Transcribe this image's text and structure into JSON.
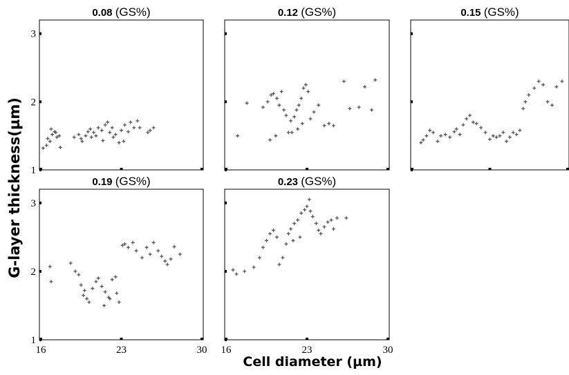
{
  "chart_data": {
    "type": "scatter",
    "ylabel": "G-layer thickness(µm)",
    "xlabel": "Cell diameter (µm)",
    "xticks": [
      "16",
      "23",
      "30"
    ],
    "yticks": [
      "1",
      "2",
      "3"
    ],
    "xlim": [
      16,
      30
    ],
    "ylim": [
      1,
      3.2
    ],
    "marker_color": "#555555",
    "panels": [
      {
        "title_value": "0.08",
        "title_unit": "(GS%)",
        "x": [
          16.2,
          16.5,
          16.8,
          16.6,
          17.0,
          17.2,
          16.9,
          17.4,
          17.6,
          17.3,
          17.7,
          18.9,
          19.3,
          19.5,
          19.9,
          20.1,
          19.6,
          20.3,
          20.6,
          20.8,
          21.0,
          20.4,
          21.3,
          21.6,
          21.8,
          22.0,
          22.3,
          21.4,
          22.5,
          22.8,
          22.2,
          23.0,
          23.3,
          23.6,
          23.2,
          24.1,
          24.4,
          23.8,
          24.6,
          25.5,
          25.8,
          25.3
        ],
        "y": [
          1.32,
          1.36,
          1.42,
          1.46,
          1.52,
          1.56,
          1.6,
          1.48,
          1.5,
          1.55,
          1.33,
          1.48,
          1.52,
          1.46,
          1.5,
          1.56,
          1.42,
          1.6,
          1.55,
          1.5,
          1.62,
          1.48,
          1.58,
          1.66,
          1.7,
          1.55,
          1.48,
          1.43,
          1.52,
          1.4,
          1.62,
          1.58,
          1.66,
          1.56,
          1.42,
          1.62,
          1.72,
          1.7,
          1.62,
          1.58,
          1.62,
          1.55
        ]
      },
      {
        "title_value": "0.12",
        "title_unit": "(GS%)",
        "x": [
          17.0,
          17.8,
          19.2,
          19.6,
          19.9,
          20.1,
          20.4,
          20.6,
          20.8,
          21.0,
          21.2,
          20.3,
          19.8,
          21.4,
          21.6,
          21.9,
          22.1,
          22.3,
          22.5,
          22.7,
          22.9,
          23.1,
          21.7,
          22.2,
          22.6,
          23.3,
          23.6,
          24.0,
          24.5,
          24.9,
          25.3,
          26.2,
          26.7,
          27.5,
          28.0,
          28.6,
          28.9
        ],
        "y": [
          1.5,
          1.98,
          1.92,
          2.0,
          2.1,
          2.12,
          2.05,
          1.95,
          2.15,
          1.88,
          1.8,
          1.5,
          1.44,
          1.55,
          1.72,
          1.78,
          1.88,
          1.95,
          2.05,
          2.2,
          2.25,
          2.15,
          1.55,
          1.6,
          1.68,
          1.75,
          1.85,
          1.95,
          1.65,
          1.68,
          1.65,
          2.3,
          1.9,
          1.92,
          2.22,
          1.88,
          2.32
        ]
      },
      {
        "title_value": "0.15",
        "title_unit": "(GS%)",
        "x": [
          16.8,
          17.0,
          17.3,
          17.6,
          17.9,
          18.3,
          18.6,
          19.0,
          19.4,
          19.8,
          20.0,
          20.3,
          20.6,
          20.9,
          21.2,
          21.5,
          21.8,
          22.2,
          22.6,
          23.0,
          23.3,
          23.6,
          23.9,
          24.2,
          24.5,
          24.8,
          25.1,
          25.4,
          25.7,
          26.0,
          26.2,
          26.5,
          27.0,
          27.4,
          27.8,
          28.2,
          28.6,
          29.0,
          29.5
        ],
        "y": [
          1.4,
          1.44,
          1.5,
          1.58,
          1.55,
          1.42,
          1.5,
          1.52,
          1.48,
          1.56,
          1.6,
          1.52,
          1.66,
          1.75,
          1.8,
          1.7,
          1.68,
          1.62,
          1.55,
          1.45,
          1.5,
          1.48,
          1.5,
          1.55,
          1.42,
          1.48,
          1.55,
          1.52,
          1.58,
          1.9,
          2.0,
          2.1,
          2.2,
          2.3,
          2.25,
          2.0,
          1.95,
          2.22,
          2.3
        ]
      },
      {
        "title_value": "0.19",
        "title_unit": "(GS%)",
        "x": [
          16.8,
          16.9,
          18.6,
          19.0,
          19.3,
          19.5,
          19.8,
          20.0,
          20.2,
          19.7,
          20.5,
          20.8,
          21.0,
          21.3,
          21.6,
          21.9,
          22.2,
          22.5,
          22.8,
          23.1,
          21.5,
          22.0,
          22.6,
          23.3,
          23.6,
          24.0,
          24.3,
          24.8,
          25.2,
          25.5,
          25.8,
          26.2,
          26.5,
          26.8,
          27.0,
          27.3,
          27.6,
          28.1
        ],
        "y": [
          2.07,
          1.85,
          2.12,
          2.0,
          1.95,
          1.8,
          1.72,
          1.6,
          1.55,
          1.65,
          1.75,
          1.85,
          1.9,
          1.78,
          1.7,
          1.62,
          1.88,
          1.92,
          1.55,
          2.38,
          1.5,
          1.6,
          1.68,
          2.4,
          2.35,
          2.42,
          2.3,
          2.2,
          2.35,
          2.25,
          2.42,
          2.3,
          2.22,
          2.15,
          2.1,
          2.18,
          2.36,
          2.25
        ]
      },
      {
        "title_value": "0.23",
        "title_unit": "(GS%)",
        "x": [
          16.6,
          16.9,
          17.6,
          18.4,
          18.9,
          19.2,
          19.5,
          19.8,
          20.1,
          20.4,
          20.6,
          20.9,
          21.2,
          21.4,
          21.6,
          21.9,
          22.2,
          22.5,
          22.8,
          23.0,
          23.2,
          23.5,
          23.8,
          24.0,
          24.2,
          24.5,
          24.8,
          25.1,
          25.3,
          25.6,
          26.4,
          22.4,
          23.3,
          21.8
        ],
        "y": [
          2.02,
          1.96,
          2.0,
          2.06,
          2.2,
          2.35,
          2.45,
          2.55,
          2.6,
          2.5,
          2.1,
          2.2,
          2.4,
          2.55,
          2.62,
          2.7,
          2.75,
          2.85,
          2.9,
          2.95,
          3.05,
          2.8,
          2.7,
          2.6,
          2.55,
          2.65,
          2.72,
          2.75,
          2.62,
          2.78,
          2.78,
          2.5,
          2.88,
          2.45
        ]
      }
    ]
  }
}
